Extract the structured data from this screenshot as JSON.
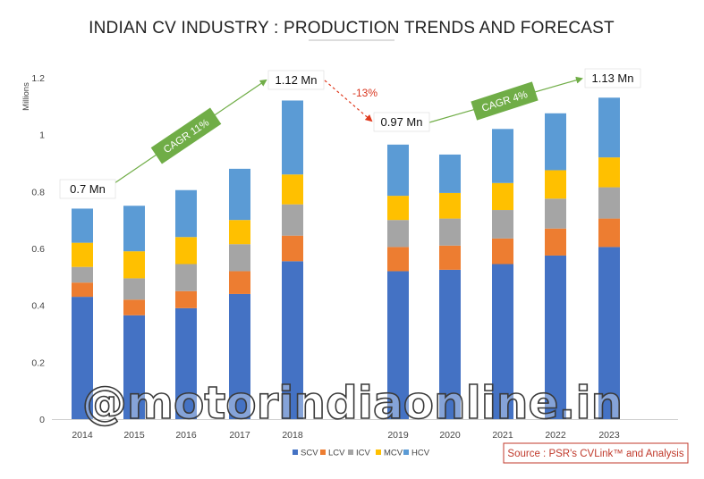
{
  "chart_data": {
    "type": "bar",
    "stacked": true,
    "title": "INDIAN CV INDUSTRY : PRODUCTION TRENDS AND FORECAST",
    "ylabel": "Millions",
    "xlabel": "",
    "ylim": [
      0,
      1.2
    ],
    "yticks": [
      0,
      0.2,
      0.4,
      0.6,
      0.8,
      1,
      1.2
    ],
    "ytick_labels": [
      "0",
      "0.2",
      "0.4",
      "0.6",
      "0.8",
      "1",
      "1.2"
    ],
    "grid": false,
    "legend_position": "bottom",
    "categories": [
      "2014",
      "2015",
      "2016",
      "2017",
      "2018",
      "2019",
      "2020",
      "2021",
      "2022",
      "2023"
    ],
    "series": [
      {
        "name": "SCV",
        "color": "#4472c4",
        "values": [
          0.43,
          0.365,
          0.39,
          0.44,
          0.555,
          0.52,
          0.525,
          0.545,
          0.575,
          0.605
        ]
      },
      {
        "name": "LCV",
        "color": "#ed7d31",
        "values": [
          0.05,
          0.055,
          0.06,
          0.08,
          0.09,
          0.085,
          0.085,
          0.09,
          0.095,
          0.1
        ]
      },
      {
        "name": "ICV",
        "color": "#a5a5a5",
        "values": [
          0.055,
          0.075,
          0.095,
          0.095,
          0.11,
          0.095,
          0.095,
          0.1,
          0.105,
          0.11
        ]
      },
      {
        "name": "MCV",
        "color": "#ffc000",
        "values": [
          0.085,
          0.095,
          0.095,
          0.085,
          0.105,
          0.085,
          0.09,
          0.095,
          0.1,
          0.105
        ]
      },
      {
        "name": "HCV",
        "color": "#5b9bd5",
        "values": [
          0.12,
          0.16,
          0.165,
          0.18,
          0.26,
          0.18,
          0.135,
          0.19,
          0.2,
          0.21
        ]
      }
    ],
    "annotations": {
      "start_total": "0.7 Mn",
      "peak_total": "1.12 Mn",
      "dip_total": "0.97 Mn",
      "end_total": "1.13 Mn",
      "cagr_first": "CAGR 11%",
      "decline": "-13%",
      "cagr_second": "CAGR 4%"
    }
  },
  "source": "Source : PSR's CVLink™ and Analysis",
  "watermark": "@motorindiaonline.in",
  "colors": {
    "cagr_box": "#70ad47",
    "growth_arrow": "#70ad47",
    "decline_arrow": "#e03a1e",
    "source_border": "#c0392b"
  }
}
